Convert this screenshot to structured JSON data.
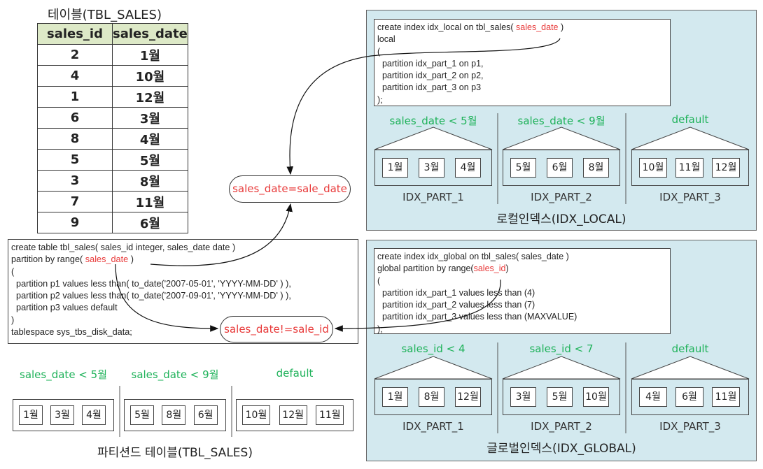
{
  "table": {
    "title": "테이블(TBL_SALES)",
    "headers": [
      "sales_id",
      "sales_date"
    ],
    "rows": [
      [
        "2",
        "1월"
      ],
      [
        "4",
        "10월"
      ],
      [
        "1",
        "12월"
      ],
      [
        "6",
        "3월"
      ],
      [
        "8",
        "4월"
      ],
      [
        "5",
        "5월"
      ],
      [
        "3",
        "8월"
      ],
      [
        "7",
        "11월"
      ],
      [
        "9",
        "6월"
      ]
    ]
  },
  "local": {
    "code": {
      "l1a": "create index idx_local on tbl_sales( ",
      "l1b": "sales_date",
      "l1c": " )",
      "rest": "local\n(\n  partition idx_part_1 on p1,\n  partition idx_part_2 on p2,\n  partition idx_part_3 on p3\n);"
    },
    "conditions": [
      "sales_date < 5월",
      "sales_date < 9월",
      "default"
    ],
    "groups": [
      [
        "1월",
        "3월",
        "4월"
      ],
      [
        "5월",
        "6월",
        "8월"
      ],
      [
        "10월",
        "11월",
        "12월"
      ]
    ],
    "labels": [
      "IDX_PART_1",
      "IDX_PART_2",
      "IDX_PART_3"
    ],
    "footer": "로컬인덱스(IDX_LOCAL)"
  },
  "global": {
    "code": {
      "l1": "create index idx_global on tbl_sales( sales_date )",
      "l2a": "global partition by range(",
      "l2b": "sales_id",
      "l2c": ")",
      "rest": "(\n  partition idx_part_1 values less than (4)\n  partition idx_part_2 values less than (7)\n  partition idx_part_3 values less than (MAXVALUE)\n);"
    },
    "conditions": [
      "sales_id < 4",
      "sales_id < 7",
      "default"
    ],
    "groups": [
      [
        "1월",
        "8월",
        "12월"
      ],
      [
        "3월",
        "5월",
        "10월"
      ],
      [
        "4월",
        "6월",
        "11월"
      ]
    ],
    "labels": [
      "IDX_PART_1",
      "IDX_PART_2",
      "IDX_PART_3"
    ],
    "footer": "글로벌인덱스(IDX_GLOBAL)"
  },
  "create_table": {
    "l1": "create table tbl_sales( sales_id integer, sales_date date )",
    "l2a": "partition by range( ",
    "l2b": "sales_date",
    "l2c": " )",
    "rest": "(\n  partition p1 values less than( to_date('2007-05-01', 'YYYY-MM-DD' ) ),\n  partition p2 values less than( to_date('2007-09-01', 'YYYY-MM-DD' ) ),\n  partition p3 values default\n)\ntablespace sys_tbs_disk_data;"
  },
  "ovals": {
    "equal": "sales_date=sale_date",
    "not_equal": "sales_date!=sale_id"
  },
  "partitioned": {
    "conditions": [
      "sales_date < 5월",
      "sales_date < 9월",
      "default"
    ],
    "groups": [
      [
        "1월",
        "3월",
        "4월"
      ],
      [
        "5월",
        "8월",
        "6월"
      ],
      [
        "10월",
        "12월",
        "11월"
      ]
    ],
    "footer": "파티션드 테이블(TBL_SALES)"
  },
  "colors": {
    "panel": "#d3e9ef",
    "condition": "#1fb25a",
    "highlight": "#e83a3a",
    "header": "#dde9c7"
  }
}
